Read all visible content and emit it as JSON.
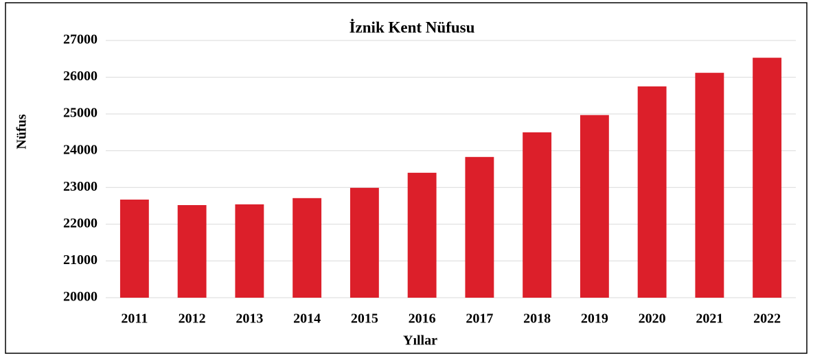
{
  "chart_data": {
    "type": "bar",
    "title": "İznik Kent Nüfusu",
    "x_label": "Yıllar",
    "y_label": "Nüfus",
    "categories": [
      "2011",
      "2012",
      "2013",
      "2014",
      "2015",
      "2016",
      "2017",
      "2018",
      "2019",
      "2020",
      "2021",
      "2022"
    ],
    "values": [
      22670,
      22520,
      22540,
      22710,
      22990,
      23400,
      23830,
      24500,
      24970,
      25750,
      26120,
      26530
    ],
    "color": "#dc1f2a",
    "ylim": [
      20000,
      27000
    ],
    "yticks": [
      20000,
      21000,
      22000,
      23000,
      24000,
      25000,
      26000,
      27000
    ],
    "grid": true
  }
}
